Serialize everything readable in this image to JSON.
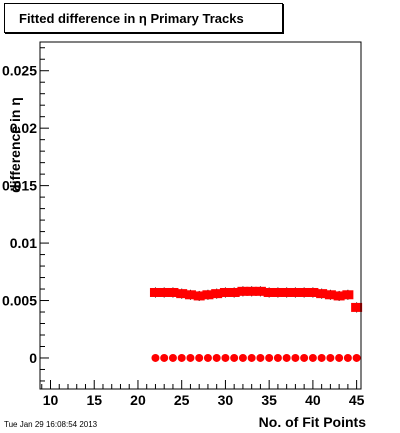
{
  "title": "Fitted difference in  η Primary Tracks",
  "timestamp": "Tue Jan 29 16:08:54 2013",
  "chart_data": {
    "type": "scatter",
    "title": "Fitted difference in  η Primary Tracks",
    "xlabel": "No. of Fit Points",
    "ylabel": "difference in η",
    "xlim": [
      8.8,
      45.5
    ],
    "ylim": [
      -0.0027,
      0.0275
    ],
    "x_ticks": [
      10,
      15,
      20,
      25,
      30,
      35,
      40,
      45
    ],
    "y_ticks": [
      0,
      0.005,
      0.01,
      0.015,
      0.02,
      0.025
    ],
    "y_tick_labels": [
      "0",
      "0.005",
      "0.01",
      "0.015",
      "0.02",
      "0.025"
    ],
    "grid": false,
    "series": [
      {
        "marker": "square",
        "color": "#ff0000",
        "x": [
          22,
          23,
          24,
          25,
          26,
          27,
          28,
          29,
          30,
          31,
          32,
          33,
          34,
          35,
          36,
          37,
          38,
          39,
          40,
          41,
          42,
          43,
          44,
          45
        ],
        "y": [
          0.0057,
          0.0057,
          0.0057,
          0.0056,
          0.0055,
          0.0054,
          0.0055,
          0.0056,
          0.0057,
          0.0057,
          0.0058,
          0.0058,
          0.0058,
          0.0057,
          0.0057,
          0.0057,
          0.0057,
          0.0057,
          0.0057,
          0.0056,
          0.0055,
          0.0054,
          0.0055,
          0.0044
        ]
      },
      {
        "marker": "circle",
        "color": "#ff0000",
        "x": [
          22,
          23,
          24,
          25,
          26,
          27,
          28,
          29,
          30,
          31,
          32,
          33,
          34,
          35,
          36,
          37,
          38,
          39,
          40,
          41,
          42,
          43,
          44,
          45
        ],
        "y": [
          0,
          0,
          0,
          0,
          0,
          0,
          0,
          0,
          0,
          0,
          0,
          0,
          0,
          0,
          0,
          0,
          0,
          0,
          0,
          0,
          0,
          0,
          0,
          0
        ]
      }
    ]
  }
}
